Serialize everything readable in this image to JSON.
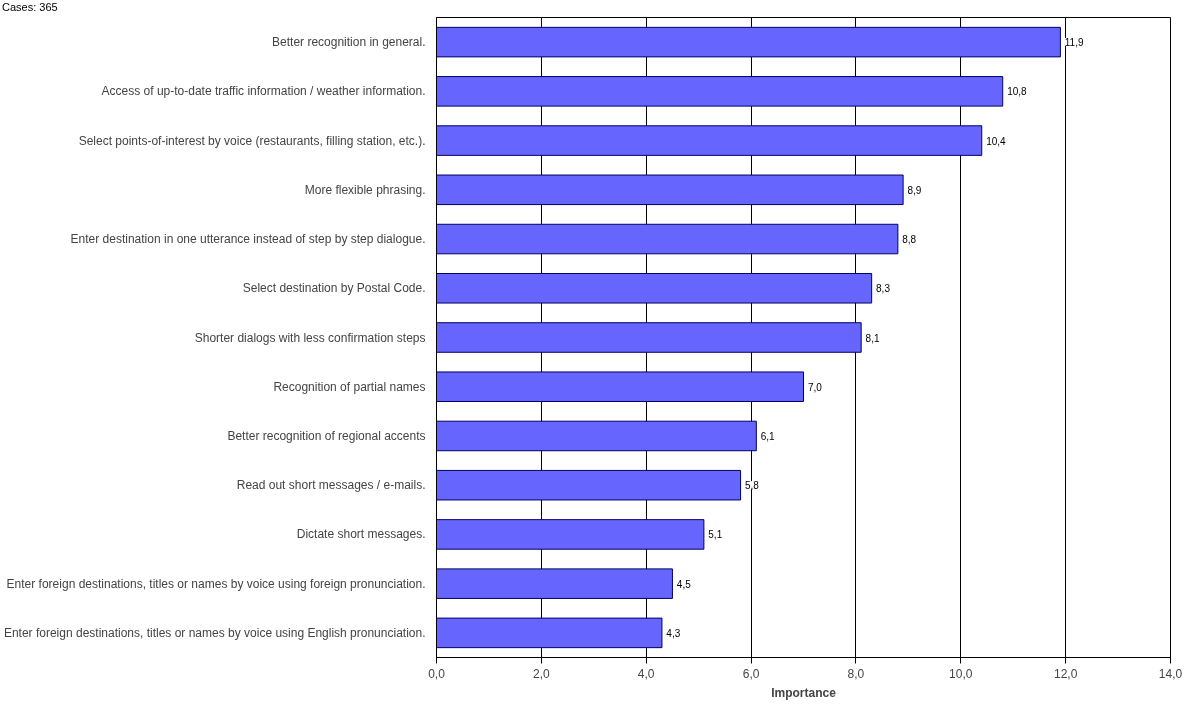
{
  "chart_data": {
    "type": "bar",
    "orientation": "horizontal",
    "categories": [
      "Better recognition in general.",
      "Access of up-to-date traffic information / weather information.",
      "Select points-of-interest by voice (restaurants, filling station, etc.).",
      "More flexible phrasing.",
      "Enter destination in one utterance instead of step by step dialogue.",
      "Select destination by Postal Code.",
      "Shorter dialogs with less confirmation steps",
      "Recognition of partial names",
      "Better recognition of regional accents",
      "Read out short messages / e-mails.",
      "Dictate short messages.",
      "Enter foreign destinations, titles or names by voice using foreign pronunciation.",
      "Enter foreign destinations, titles or names by voice using English pronunciation."
    ],
    "values": [
      11.9,
      10.8,
      10.4,
      8.9,
      8.8,
      8.3,
      8.1,
      7.0,
      6.1,
      5.8,
      5.1,
      4.5,
      4.3
    ],
    "value_labels": [
      "11,9",
      "10,8",
      "10,4",
      "8,9",
      "8,8",
      "8,3",
      "8,1",
      "7,0",
      "6,1",
      "5,8",
      "5,1",
      "4,5",
      "4,3"
    ],
    "color": "#6666ff",
    "xlabel": "Importance",
    "xlim": [
      0,
      14
    ],
    "xticks": [
      {
        "value": 0,
        "label": "0,0"
      },
      {
        "value": 2,
        "label": "2,0"
      },
      {
        "value": 4,
        "label": "4,0"
      },
      {
        "value": 6,
        "label": "6,0"
      },
      {
        "value": 8,
        "label": "8,0"
      },
      {
        "value": 10,
        "label": "10,0"
      },
      {
        "value": 12,
        "label": "12,0"
      },
      {
        "value": 14,
        "label": "14,0"
      }
    ],
    "grid": "x",
    "annotations": [
      "Cases: 365"
    ]
  }
}
